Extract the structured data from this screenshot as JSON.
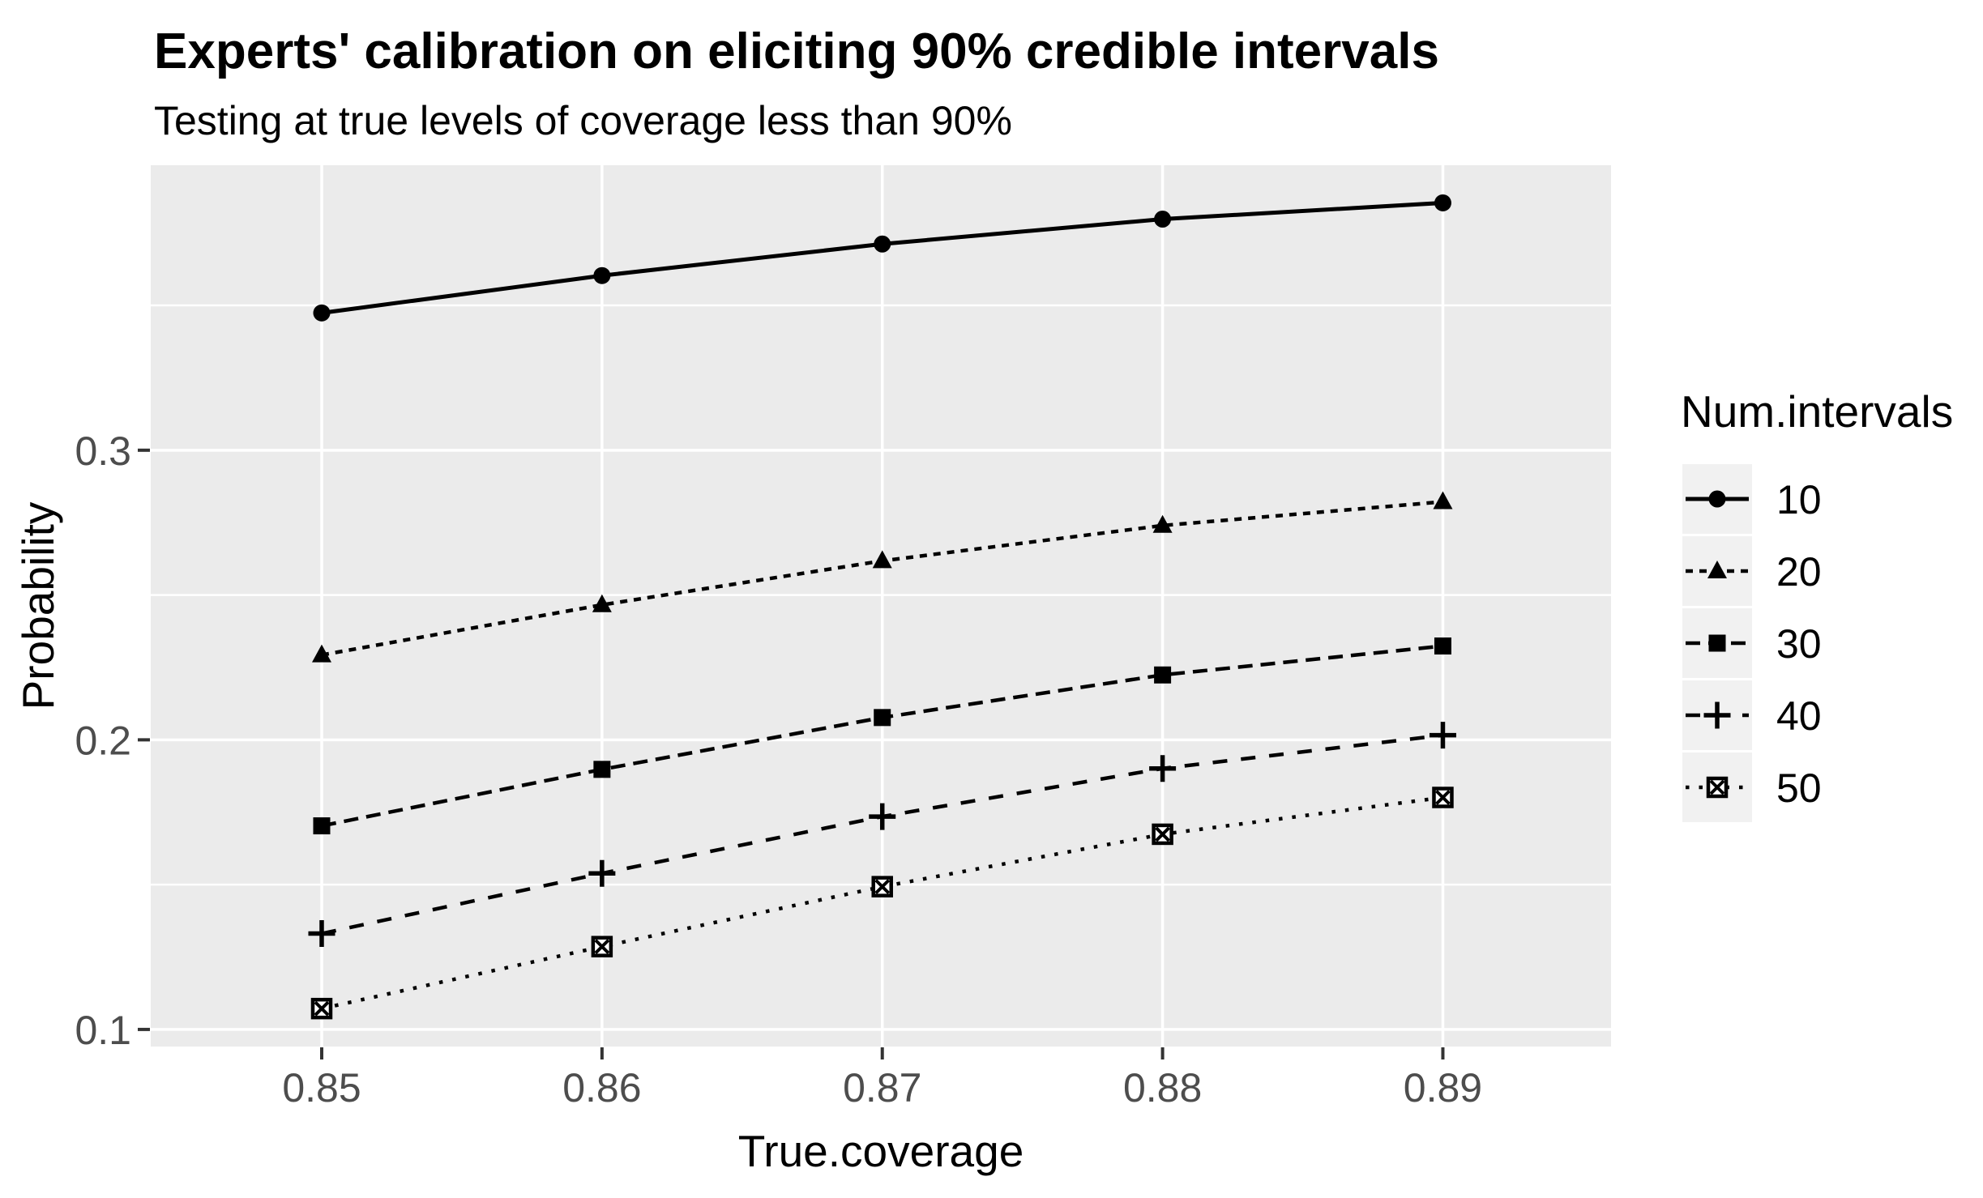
{
  "chart": {
    "title": "Experts' calibration on eliciting 90% credible intervals",
    "subtitle": "Testing at true levels of coverage less than 90%",
    "xlabel": "True.coverage",
    "ylabel": "Probability",
    "legend_title": "Num.intervals"
  },
  "chart_data": {
    "type": "line",
    "title": "Experts' calibration on eliciting 90% credible intervals",
    "subtitle": "Testing at true levels of coverage less than 90%",
    "xlabel": "True.coverage",
    "ylabel": "Probability",
    "legend_title": "Num.intervals",
    "legend_position": "right",
    "grid": true,
    "x": [
      0.85,
      0.86,
      0.87,
      0.88,
      0.89
    ],
    "x_tick_labels": [
      "0.85",
      "0.86",
      "0.87",
      "0.88",
      "0.89"
    ],
    "y_ticks": [
      0.1,
      0.2,
      0.3
    ],
    "y_tick_labels": [
      "0.1",
      "0.2",
      "0.3"
    ],
    "y_minor_ticks": [
      0.15,
      0.25,
      0.35
    ],
    "xlim": [
      0.8439,
      0.896
    ],
    "ylim": [
      0.0941,
      0.3984
    ],
    "series": [
      {
        "name": "10",
        "shape": "circle",
        "linetype": "solid",
        "values": [
          0.3474,
          0.3603,
          0.3712,
          0.3798,
          0.3854
        ]
      },
      {
        "name": "20",
        "shape": "triangle",
        "linetype": "shortdash",
        "values": [
          0.2293,
          0.2466,
          0.2618,
          0.274,
          0.2822
        ]
      },
      {
        "name": "30",
        "shape": "square",
        "linetype": "dash",
        "values": [
          0.1703,
          0.1898,
          0.2077,
          0.2224,
          0.2324
        ]
      },
      {
        "name": "40",
        "shape": "plus",
        "linetype": "longdash",
        "values": [
          0.1331,
          0.1539,
          0.1735,
          0.1901,
          0.2016
        ]
      },
      {
        "name": "50",
        "shape": "square-cross",
        "linetype": "dotted",
        "values": [
          0.1072,
          0.1286,
          0.1493,
          0.1674,
          0.1801
        ]
      }
    ],
    "colors": {
      "series_color": "#000000",
      "panel_bg": "#ebebeb",
      "gridline": "#ffffff",
      "legend_key_bg": "#f1f1f1",
      "tick_mark": "#333333",
      "tick_label": "#4d4d4d",
      "text": "#000000",
      "page_bg": "#ffffff"
    }
  }
}
